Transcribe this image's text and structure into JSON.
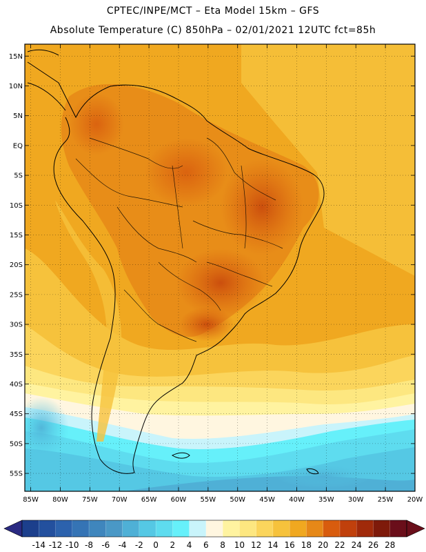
{
  "header": {
    "line1": "CPTEC/INPE/MCT –  Eta Model 15km – GFS",
    "line2": "Absolute Temperature (C) 850hPa – 02/01/2021 12UTC fct=85h"
  },
  "map": {
    "lat_ticks": [
      "15N",
      "10N",
      "5N",
      "EQ",
      "5S",
      "10S",
      "15S",
      "20S",
      "25S",
      "30S",
      "35S",
      "40S",
      "45S",
      "50S",
      "55S"
    ],
    "lat_values": [
      15,
      10,
      5,
      0,
      -5,
      -10,
      -15,
      -20,
      -25,
      -30,
      -35,
      -40,
      -45,
      -50,
      -55
    ],
    "lon_ticks": [
      "85W",
      "80W",
      "75W",
      "70W",
      "65W",
      "60W",
      "55W",
      "50W",
      "45W",
      "40W",
      "35W",
      "30W",
      "25W",
      "20W"
    ],
    "lon_values": [
      -85,
      -80,
      -75,
      -70,
      -65,
      -60,
      -55,
      -50,
      -45,
      -40,
      -35,
      -30,
      -25,
      -20
    ],
    "lat_range": [
      -58,
      17
    ],
    "lon_range": [
      -86,
      -20
    ],
    "grid": "dotted"
  },
  "colorbar": {
    "labels": [
      "-14",
      "-12",
      "-10",
      "-8",
      "-6",
      "-4",
      "-2",
      "0",
      "2",
      "4",
      "6",
      "8",
      "10",
      "12",
      "14",
      "16",
      "18",
      "20",
      "22",
      "24",
      "26",
      "28"
    ],
    "colors": [
      "#1c3f8c",
      "#23509e",
      "#2c62ad",
      "#3574b5",
      "#3f86bd",
      "#4a98c6",
      "#4fb0d6",
      "#55c8e4",
      "#5edcef",
      "#66f0fa",
      "#c9f4fb",
      "#fff6e0",
      "#fff3a0",
      "#fde780",
      "#fbd55c",
      "#f6c23c",
      "#f0a820",
      "#e68818",
      "#d85c0e",
      "#c0400c",
      "#a02a0a",
      "#7e1a0a",
      "#6a0e1a"
    ],
    "under_color": "#2a2a82",
    "over_color": "#6a0e1a"
  }
}
